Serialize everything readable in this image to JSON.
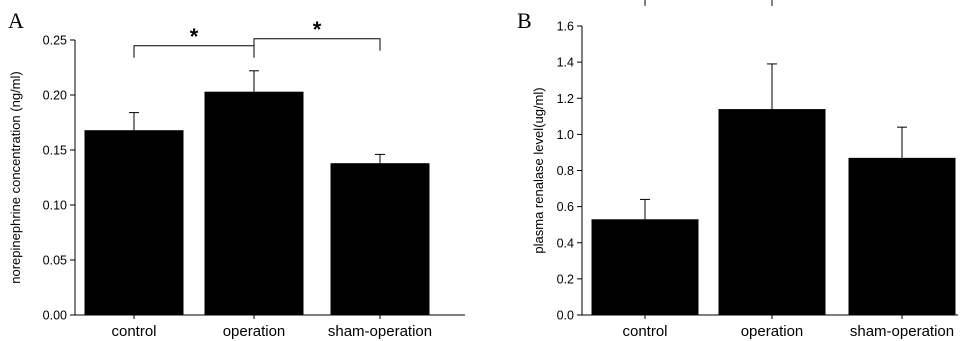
{
  "chart_data": [
    {
      "type": "bar",
      "panel": "A",
      "categories": [
        "control",
        "operation",
        "sham-operation"
      ],
      "values": [
        0.168,
        0.203,
        0.138
      ],
      "errors": [
        0.016,
        0.019,
        0.008
      ],
      "ylabel": "norepinephrine concentration (ng/ml)",
      "ylim": [
        0,
        0.25
      ],
      "yticks": [
        "0.00",
        "0.05",
        "0.10",
        "0.15",
        "0.20",
        "0.25"
      ],
      "significance": [
        {
          "from": 0,
          "to": 1,
          "label": "*"
        },
        {
          "from": 1,
          "to": 2,
          "label": "*"
        }
      ],
      "bar_color": "#000000",
      "grid": false
    },
    {
      "type": "bar",
      "panel": "B",
      "categories": [
        "control",
        "operation",
        "sham-operation"
      ],
      "values": [
        0.53,
        1.14,
        0.87
      ],
      "errors": [
        0.11,
        0.25,
        0.17
      ],
      "ylabel": "plasma renalase level(ug/ml)",
      "ylim": [
        0,
        1.6
      ],
      "yticks": [
        "0.0",
        "0.2",
        "0.4",
        "0.6",
        "0.8",
        "1.0",
        "1.2",
        "1.4",
        "1.6"
      ],
      "significance": [
        {
          "from": 0,
          "to": 1,
          "label": "*"
        }
      ],
      "bar_color": "#000000",
      "grid": false
    }
  ]
}
